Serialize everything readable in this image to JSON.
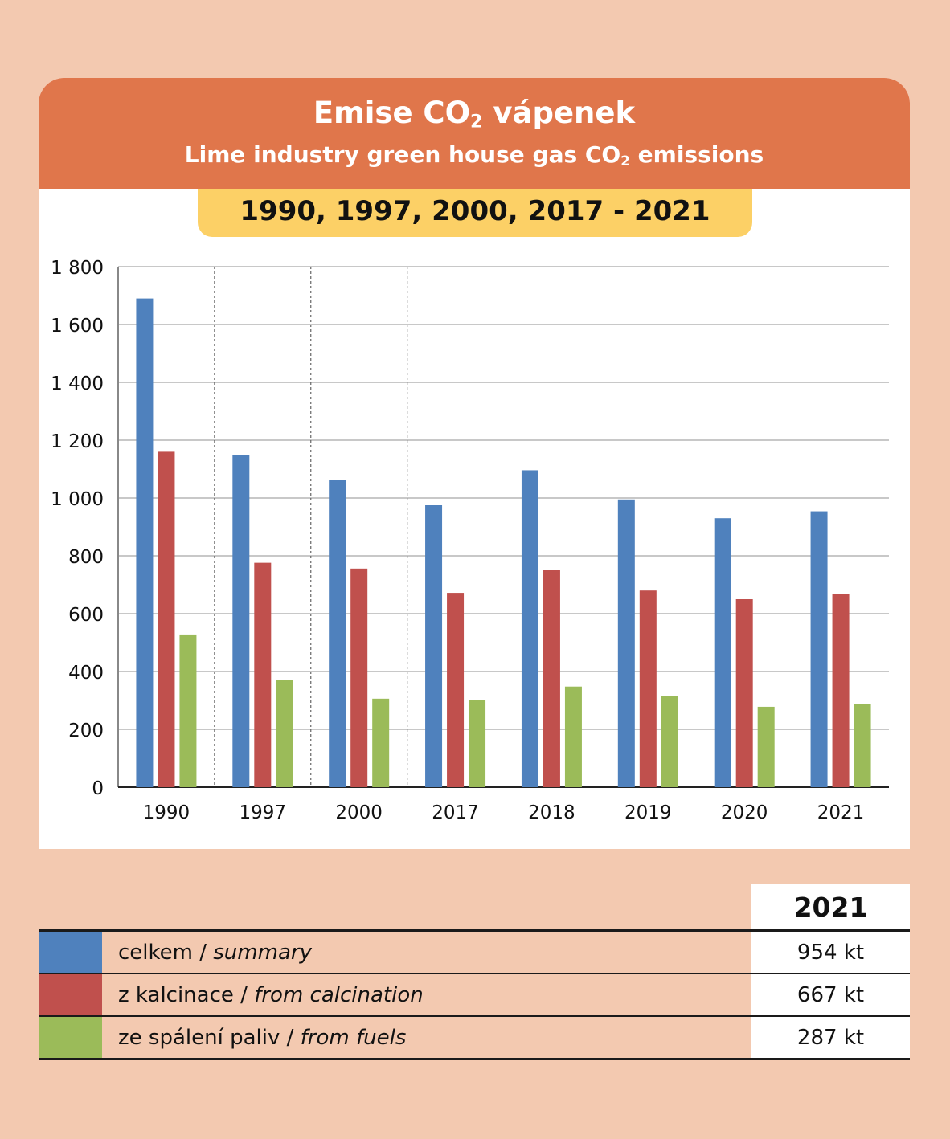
{
  "header": {
    "title_main": "Emise CO",
    "title_main_sub": "2",
    "title_main_tail": " vápenek",
    "title_en": "Lime industry green house gas CO",
    "title_en_sub": "2",
    "title_en_tail": " emissions",
    "years": "1990, 1997, 2000, 2017 - 2021"
  },
  "colors": {
    "celkem": "#4f81bd",
    "kalcinace": "#c0504d",
    "paliva": "#9bbb59",
    "header": "#e0764b",
    "band": "#fcd066",
    "background": "#f3c9b0"
  },
  "chart_data": {
    "type": "bar",
    "categories": [
      "1990",
      "1997",
      "2000",
      "2017",
      "2018",
      "2019",
      "2020",
      "2021"
    ],
    "series": [
      {
        "key": "celkem",
        "values": [
          1690,
          1148,
          1062,
          975,
          1096,
          995,
          930,
          954
        ]
      },
      {
        "key": "kalcinace",
        "values": [
          1160,
          776,
          756,
          672,
          750,
          680,
          650,
          667
        ]
      },
      {
        "key": "paliva",
        "values": [
          528,
          372,
          306,
          301,
          348,
          315,
          278,
          287
        ]
      }
    ],
    "y_ticks": [
      "0",
      "200",
      "400",
      "600",
      "800",
      "1 000",
      "1 200",
      "1 400",
      "1 600",
      "1 800"
    ],
    "ylim": [
      0,
      1800
    ],
    "grid": true,
    "dashed_separators_after": [
      "1990",
      "1997",
      "2000"
    ]
  },
  "legend": {
    "year_header": "2021",
    "rows": [
      {
        "cs": "celkem / ",
        "en": "summary",
        "value": "954 kt",
        "color": "#4f81bd"
      },
      {
        "cs": "z kalcinace / ",
        "en": "from calcination",
        "value": "667 kt",
        "color": "#c0504d"
      },
      {
        "cs": "ze spálení paliv / ",
        "en": "from fuels",
        "value": "287 kt",
        "color": "#9bbb59"
      }
    ]
  }
}
